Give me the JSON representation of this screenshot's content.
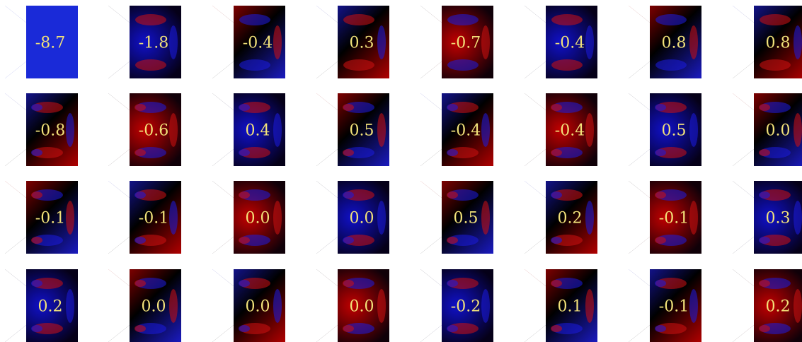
{
  "grid": {
    "rows": [
      [
        "-8.7",
        "-1.8",
        "-0.4",
        "0.3",
        "-0.7",
        "-0.4",
        "0.8",
        "0.8"
      ],
      [
        "-0.8",
        "-0.6",
        "0.4",
        "0.5",
        "-0.4",
        "-0.4",
        "0.5",
        "0.0"
      ],
      [
        "-0.1",
        "-0.1",
        "0.0",
        "0.0",
        "0.5",
        "0.2",
        "-0.1",
        "0.3"
      ],
      [
        "0.2",
        "0.0",
        "0.0",
        "0.0",
        "-0.2",
        "0.1",
        "-0.1",
        "0.2"
      ]
    ]
  }
}
